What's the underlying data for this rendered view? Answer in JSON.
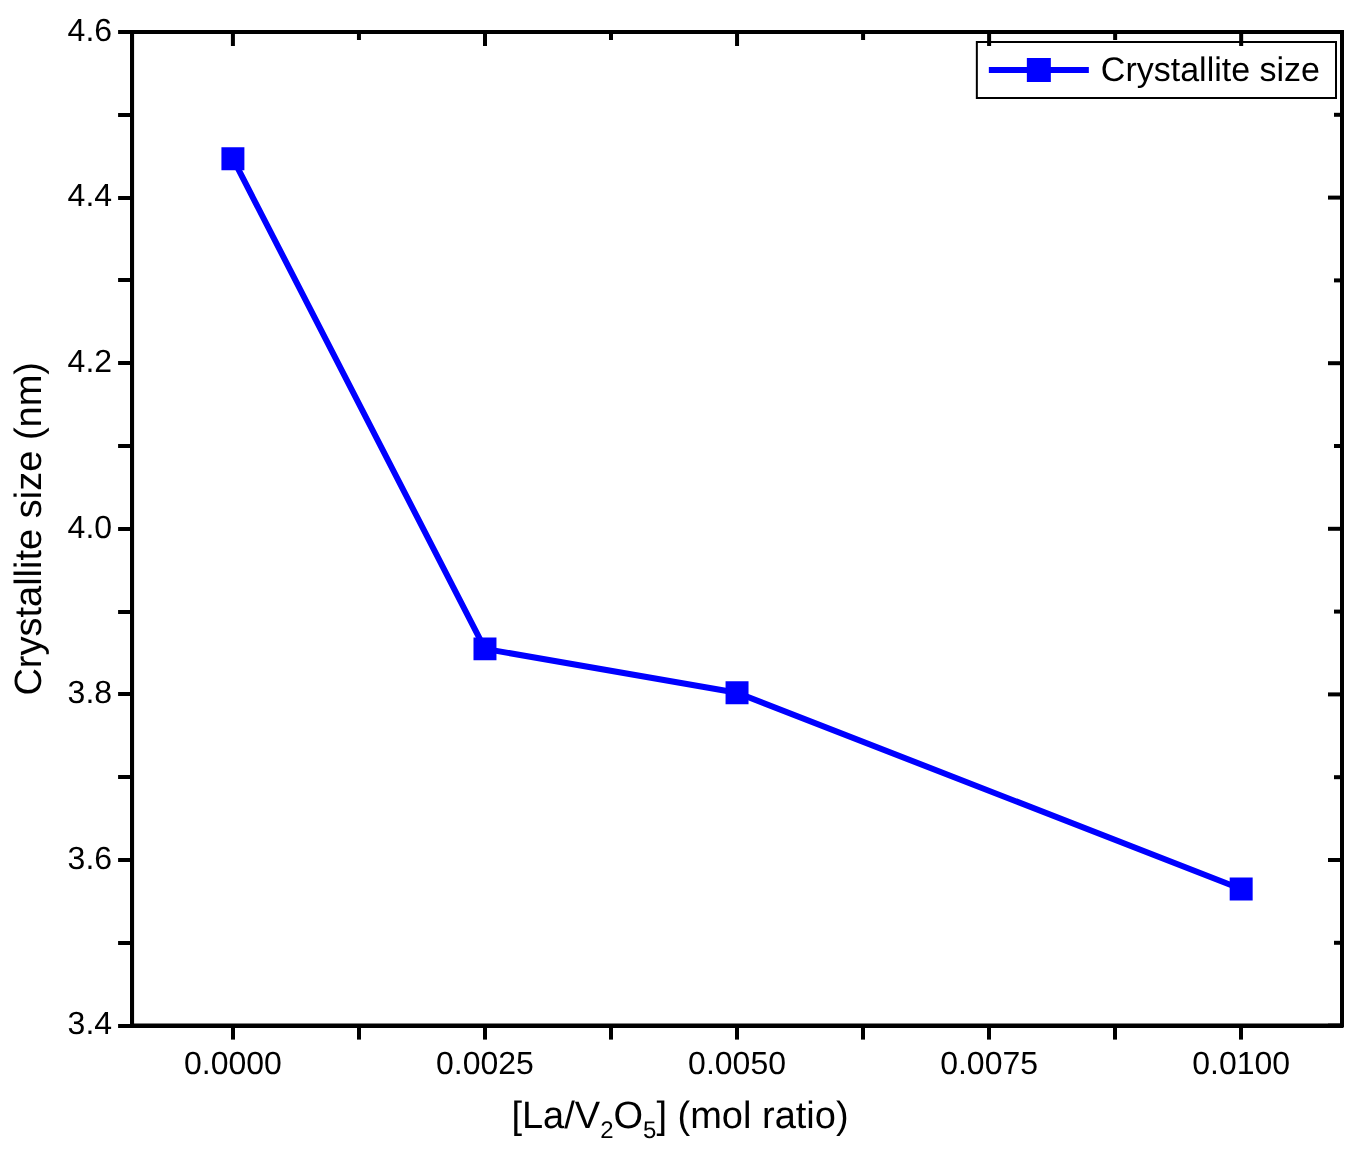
{
  "chart_data": {
    "type": "line",
    "xlabel": "[La/V$_{2}$O$_{5}$] (mol ratio)",
    "ylabel": "Crystallite size (nm)",
    "x": [
      0,
      0.0025,
      0.005,
      0.01
    ],
    "series": [
      {
        "name": "Crystallite size",
        "color": "#0000ff",
        "values": [
          4.447,
          3.855,
          3.802,
          3.565
        ]
      }
    ],
    "xlim": [
      -0.001,
      0.011
    ],
    "xticks": [
      {
        "value": 0,
        "label": "0.0000"
      },
      {
        "value": 0.00125,
        "label": null
      },
      {
        "value": 0.0025,
        "label": "0.0025"
      },
      {
        "value": 0.00375,
        "label": null
      },
      {
        "value": 0.005,
        "label": "0.0050"
      },
      {
        "value": 0.00625,
        "label": null
      },
      {
        "value": 0.0075,
        "label": "0.0075"
      },
      {
        "value": 0.00875,
        "label": null
      },
      {
        "value": 0.01,
        "label": "0.0100"
      }
    ],
    "ylim": [
      3.4,
      4.6
    ],
    "yticks": [
      {
        "value": 3.4,
        "label": "3.4"
      },
      {
        "value": 3.5,
        "label": null
      },
      {
        "value": 3.6,
        "label": "3.6"
      },
      {
        "value": 3.7,
        "label": null
      },
      {
        "value": 3.8,
        "label": "3.8"
      },
      {
        "value": 3.9,
        "label": null
      },
      {
        "value": 4.0,
        "label": "4.0"
      },
      {
        "value": 4.1,
        "label": null
      },
      {
        "value": 4.2,
        "label": "4.2"
      },
      {
        "value": 4.3,
        "label": null
      },
      {
        "value": 4.4,
        "label": "4.4"
      },
      {
        "value": 4.5,
        "label": null
      },
      {
        "value": 4.6,
        "label": "4.6"
      }
    ],
    "grid": false,
    "legend": "top right",
    "marker": "square",
    "line_style": "solid"
  }
}
